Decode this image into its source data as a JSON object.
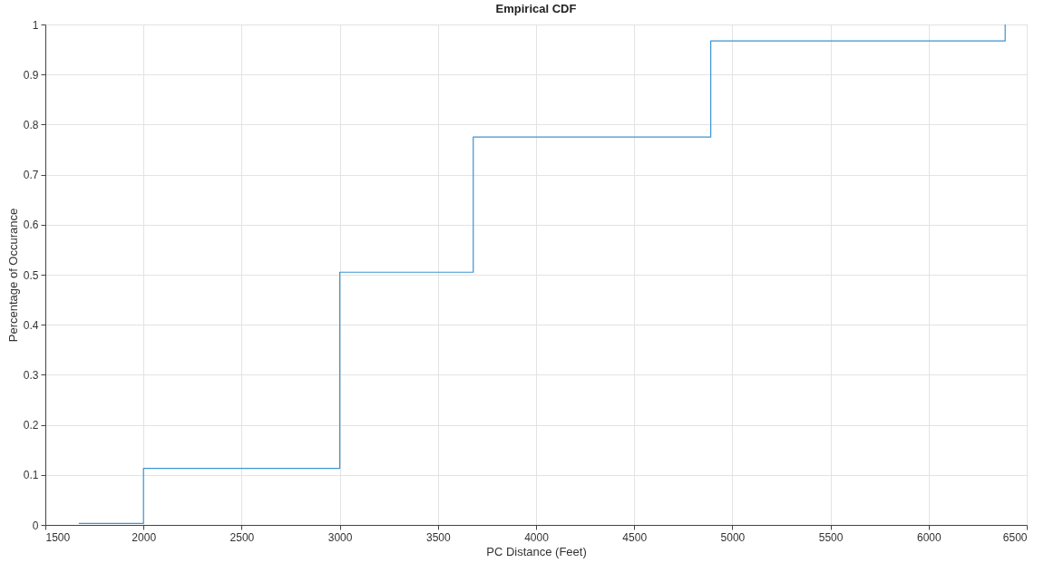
{
  "chart_data": {
    "type": "step",
    "title": "Empirical CDF",
    "xlabel": "PC Distance (Feet)",
    "ylabel": "Percentage of Occurance",
    "x": [
      1670,
      2000,
      3000,
      3680,
      4890,
      6390
    ],
    "series": [
      {
        "color": "#3c94d2",
        "values": [
          0.003,
          0.113,
          0.505,
          0.775,
          0.967,
          1
        ]
      }
    ],
    "xlim": [
      1500,
      6500
    ],
    "xticks": [
      1500,
      2000,
      2500,
      3000,
      3500,
      4000,
      4500,
      5000,
      5500,
      6000,
      6500
    ],
    "ylim": [
      0,
      1
    ],
    "yticks": [
      0,
      0.1,
      0.2,
      0.3,
      0.4,
      0.5,
      0.6,
      0.7,
      0.8,
      0.9,
      1
    ],
    "grid": true
  }
}
